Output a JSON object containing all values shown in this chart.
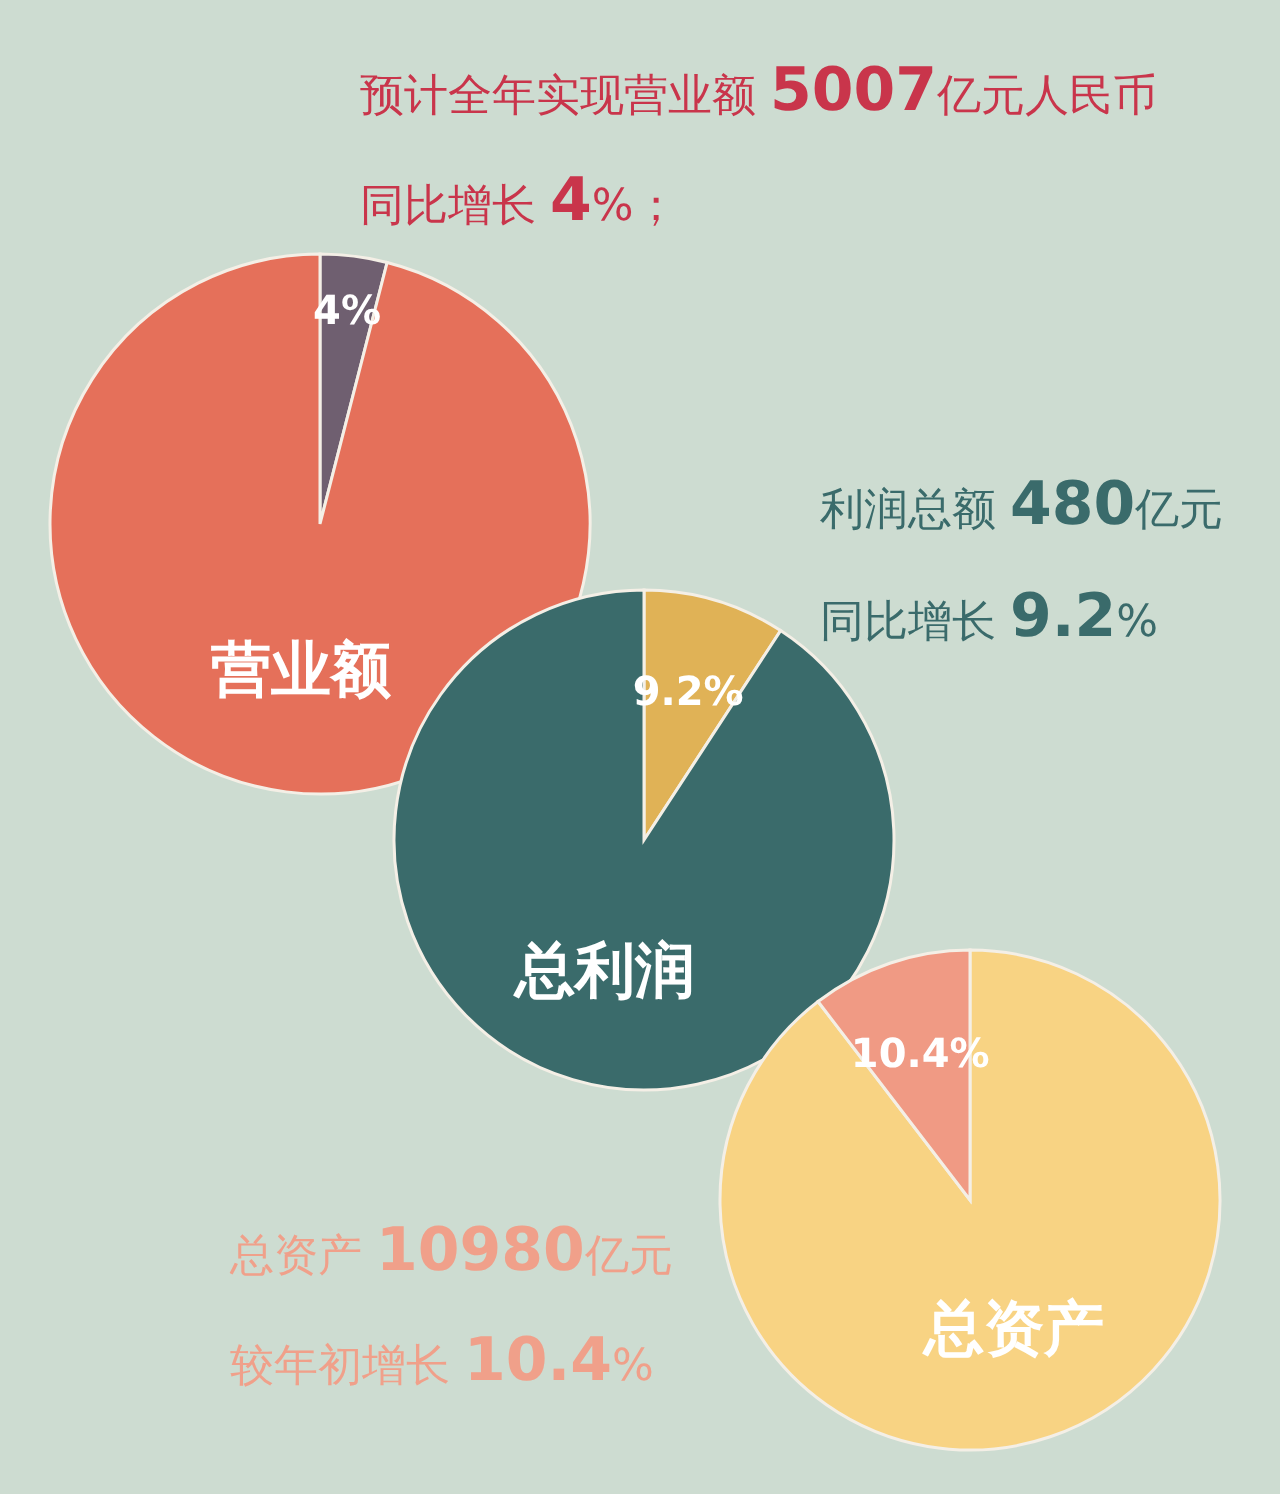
{
  "chart_data": [
    {
      "type": "pie",
      "categories": [
        null,
        "营业额"
      ],
      "values": [
        4,
        96
      ],
      "colors": [
        "#6f5f70",
        "#e5705a"
      ],
      "value_labels": [
        "4%",
        null
      ],
      "annotations": [
        "预计全年实现营业额 5007亿元人民币",
        "同比增长 4%；"
      ]
    },
    {
      "type": "pie",
      "categories": [
        null,
        "总利润"
      ],
      "values": [
        9.2,
        90.8
      ],
      "colors": [
        "#e0b256",
        "#3a6b6b"
      ],
      "value_labels": [
        "9.2%",
        null
      ],
      "annotations": [
        "利润总额 480亿元",
        "同比增长 9.2%"
      ]
    },
    {
      "type": "pie",
      "categories": [
        "总资产",
        null
      ],
      "values": [
        89.6,
        10.4
      ],
      "colors": [
        "#f8d383",
        "#f09a84"
      ],
      "value_labels": [
        null,
        "10.4%"
      ],
      "annotations": [
        "总资产 10980亿元",
        "较年初增长 10.4%"
      ]
    }
  ]
}
